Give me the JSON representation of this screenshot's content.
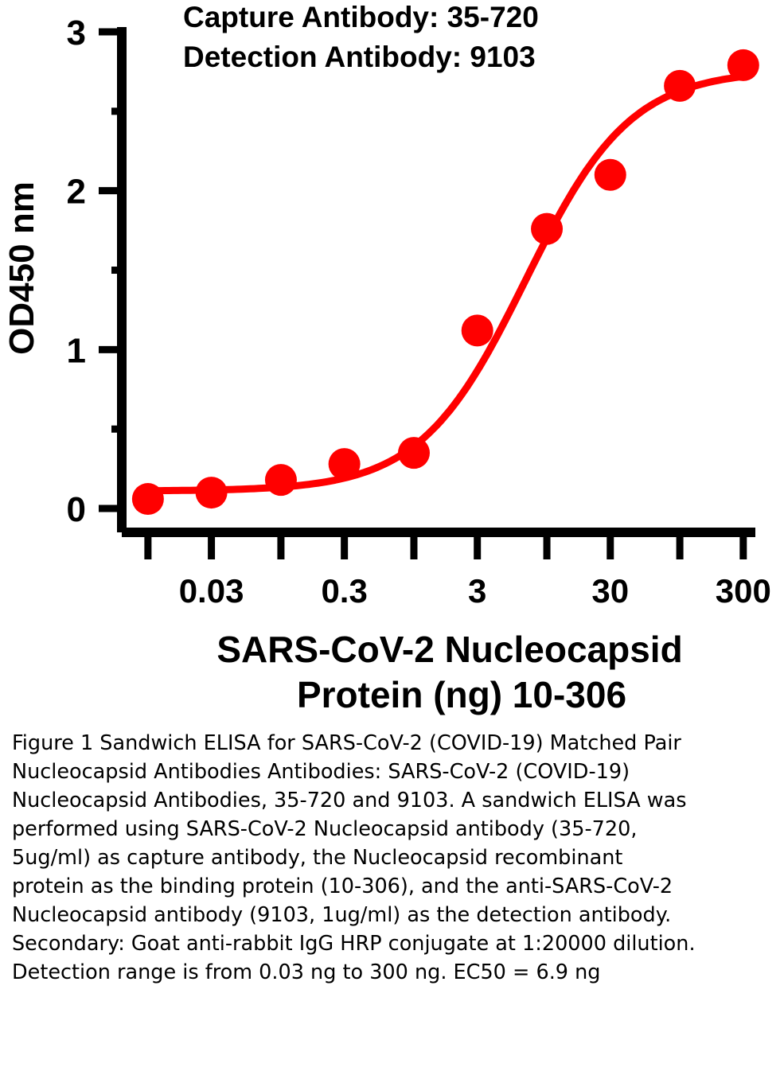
{
  "chart_data": {
    "type": "scatter",
    "annotation_lines": [
      "Capture Antibody: 35-720",
      "Detection Antibody: 9103"
    ],
    "ylabel": "OD450 nm",
    "xlabel_lines": [
      "SARS-CoV-2 Nucleocapsid",
      "Protein (ng) 10-306"
    ],
    "x_scale": "log",
    "x_tick_values": [
      0.01,
      0.03,
      0.1,
      0.3,
      1,
      3,
      10,
      30,
      100,
      300
    ],
    "x_tick_labels": [
      "",
      "0.03",
      "",
      "0.3",
      "",
      "3",
      "",
      "30",
      "",
      "300"
    ],
    "y_tick_values": [
      0,
      0.5,
      1,
      1.5,
      2,
      2.5,
      3
    ],
    "y_tick_labels": [
      "0",
      "",
      "1",
      "",
      "2",
      "",
      "3"
    ],
    "xlim": [
      0.007,
      350
    ],
    "ylim": [
      -0.12,
      3.0
    ],
    "series": [
      {
        "color": "#ff0000",
        "points": [
          {
            "x": 0.01,
            "y": 0.06
          },
          {
            "x": 0.03,
            "y": 0.1
          },
          {
            "x": 0.1,
            "y": 0.18
          },
          {
            "x": 0.3,
            "y": 0.28
          },
          {
            "x": 1,
            "y": 0.35
          },
          {
            "x": 3,
            "y": 1.12
          },
          {
            "x": 10,
            "y": 1.76
          },
          {
            "x": 30,
            "y": 2.1
          },
          {
            "x": 100,
            "y": 2.66
          },
          {
            "x": 300,
            "y": 2.79
          }
        ],
        "fit": {
          "type": "4PL",
          "bottom": 0.11,
          "top": 2.76,
          "ec50": 6.9,
          "hill": 1.1
        }
      }
    ],
    "grid": false,
    "legend": "none"
  },
  "caption": "Figure 1 Sandwich ELISA for SARS-CoV-2 (COVID-19) Matched Pair Nucleocapsid Antibodies Antibodies: SARS-CoV-2 (COVID-19) Nucleocapsid Antibodies, 35-720 and 9103. A sandwich ELISA was performed using SARS-CoV-2 Nucleocapsid antibody (35-720, 5ug/ml) as capture antibody, the Nucleocapsid recombinant protein as the binding protein (10-306), and the anti-SARS-CoV-2 Nucleocapsid antibody (9103, 1ug/ml) as the detection antibody. Secondary: Goat anti-rabbit IgG HRP conjugate at 1:20000 dilution. Detection range is from 0.03 ng to 300 ng. EC50 = 6.9 ng"
}
